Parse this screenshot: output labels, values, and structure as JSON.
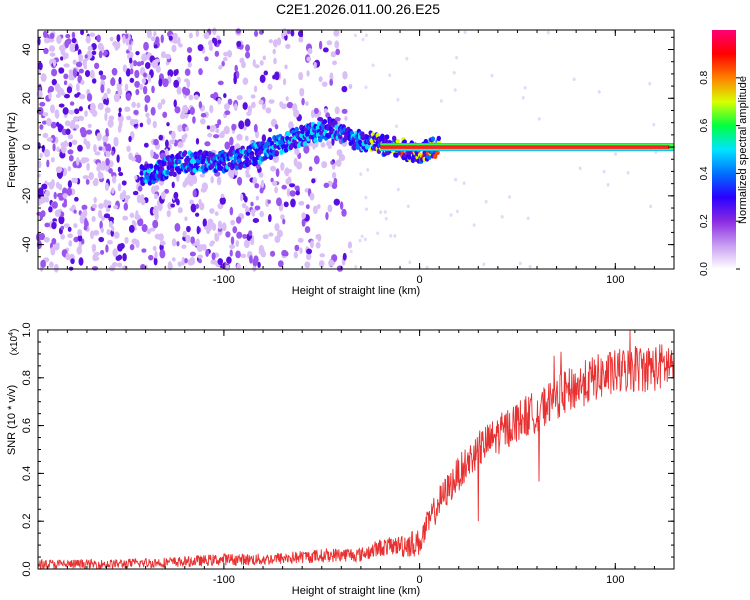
{
  "figure": {
    "title": "C2E1.2026.011.00.26.E25"
  },
  "chart_data": [
    {
      "type": "heatmap",
      "xlabel": "Height of straight line (km)",
      "ylabel": "Frequency (Hz)",
      "xlim": [
        -195,
        130
      ],
      "ylim": [
        -50,
        48
      ],
      "xticks": [
        -100,
        0,
        100
      ],
      "yticks": [
        -40,
        -20,
        0,
        20,
        40
      ],
      "colorbar": {
        "label": "Normalized spectral amplitude",
        "range": [
          0,
          1
        ],
        "ticks": [
          0.0,
          0.2,
          0.4,
          0.6,
          0.8
        ],
        "colormap": [
          "#ffffff",
          "#c89cf2",
          "#8a2be2",
          "#2a00ff",
          "#0070ff",
          "#00e5ff",
          "#00ff40",
          "#d8ff00",
          "#ff8000",
          "#ff0000",
          "#ff0078"
        ]
      },
      "ridge": {
        "description_points_x": [
          -142,
          -120,
          -100,
          -80,
          -60,
          -45,
          -35,
          -25,
          -15,
          0,
          10,
          130
        ],
        "description_points_y": [
          -12,
          -6,
          -6,
          -2,
          5,
          8,
          3,
          2,
          0,
          -2,
          0,
          0
        ]
      },
      "noise_region_x": [
        -195,
        -35
      ],
      "line_region_x": [
        -20,
        130
      ],
      "line_frequency": 0
    },
    {
      "type": "line",
      "xlabel": "Height of straight line (km)",
      "ylabel": "SNR (10 * v/v)",
      "y_multiplier_label": "(x10",
      "y_multiplier_exp": "4",
      "y_multiplier_close": ")",
      "xlim": [
        -195,
        130
      ],
      "ylim": [
        0,
        1.0
      ],
      "xticks": [
        -100,
        0,
        100
      ],
      "yticks": [
        0.0,
        0.2,
        0.4,
        0.6,
        0.8,
        1.0
      ],
      "series": [
        {
          "color": "#e83030",
          "x": [
            -195,
            -160,
            -120,
            -100,
            -80,
            -60,
            -40,
            -30,
            -20,
            -10,
            0,
            5,
            10,
            20,
            30,
            40,
            50,
            60,
            70,
            80,
            90,
            100,
            110,
            120,
            130
          ],
          "y": [
            0.02,
            0.02,
            0.03,
            0.04,
            0.04,
            0.05,
            0.06,
            0.06,
            0.09,
            0.1,
            0.11,
            0.2,
            0.28,
            0.4,
            0.5,
            0.56,
            0.62,
            0.66,
            0.72,
            0.76,
            0.8,
            0.82,
            0.84,
            0.84,
            0.86
          ]
        }
      ]
    }
  ]
}
